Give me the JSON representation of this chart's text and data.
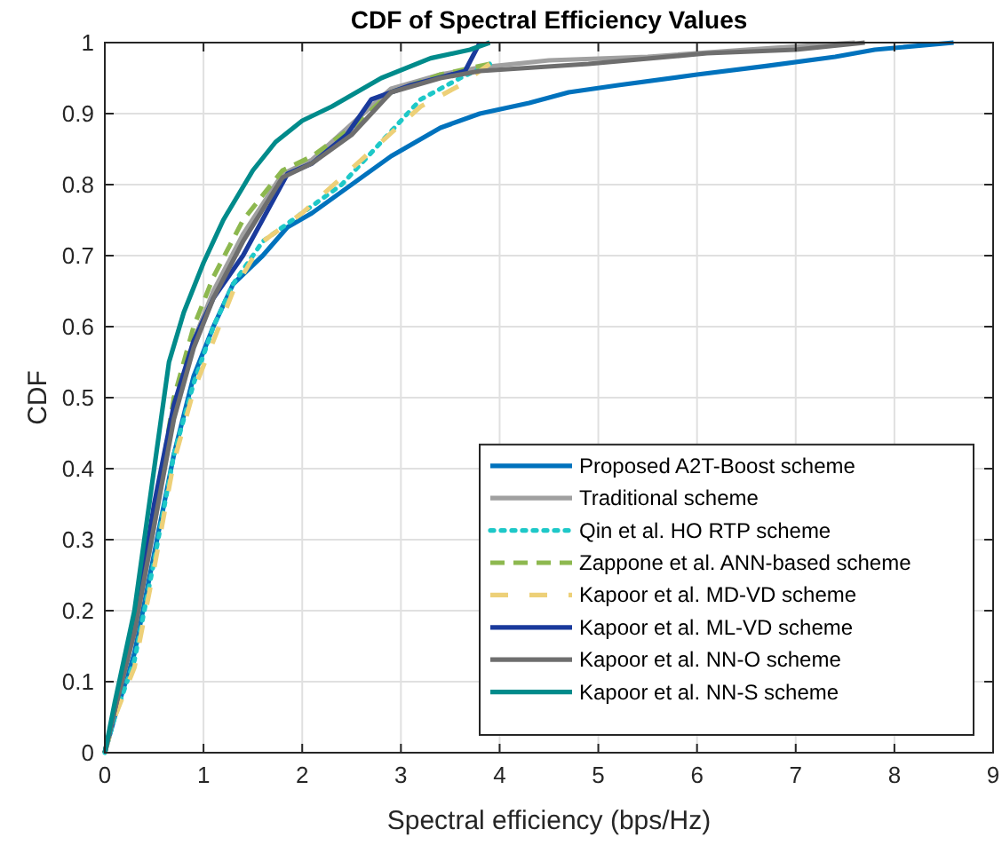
{
  "chart_data": {
    "type": "line",
    "title": "CDF of Spectral Efficiency Values",
    "xlabel": "Spectral efficiency (bps/Hz)",
    "ylabel": "CDF",
    "xlim": [
      0,
      9
    ],
    "ylim": [
      0,
      1
    ],
    "xticks": [
      0,
      1,
      2,
      3,
      4,
      5,
      6,
      7,
      8,
      9
    ],
    "yticks": [
      0,
      0.1,
      0.2,
      0.3,
      0.4,
      0.5,
      0.6,
      0.7,
      0.8,
      0.9,
      1
    ],
    "grid": true,
    "legend": "bottom right",
    "marker": "none",
    "series": [
      {
        "name": "Proposed A2T-Boost scheme",
        "color": "#0072bd",
        "line_style": "solid",
        "x": [
          0,
          0.1,
          0.3,
          0.5,
          0.7,
          0.9,
          1.1,
          1.3,
          1.6,
          1.85,
          2.1,
          2.5,
          2.9,
          3.4,
          3.8,
          4.3,
          4.7,
          5.2,
          6.0,
          6.7,
          7.4,
          7.8,
          8.6
        ],
        "values": [
          0,
          0.05,
          0.14,
          0.28,
          0.42,
          0.53,
          0.6,
          0.66,
          0.7,
          0.74,
          0.76,
          0.8,
          0.84,
          0.88,
          0.9,
          0.915,
          0.93,
          0.94,
          0.955,
          0.967,
          0.98,
          0.99,
          1
        ]
      },
      {
        "name": "Traditional scheme",
        "color": "#a0a0a0",
        "line_style": "solid",
        "x": [
          0,
          0.1,
          0.3,
          0.5,
          0.7,
          0.9,
          1.1,
          1.4,
          1.8,
          2.1,
          2.5,
          2.9,
          3.4,
          3.8,
          4.5,
          5.5,
          6.5,
          7.6
        ],
        "values": [
          0,
          0.06,
          0.17,
          0.32,
          0.48,
          0.58,
          0.65,
          0.73,
          0.815,
          0.835,
          0.885,
          0.935,
          0.955,
          0.965,
          0.975,
          0.98,
          0.99,
          1
        ]
      },
      {
        "name": "Qin et al. HO RTP scheme",
        "color": "#1ec8c8",
        "line_style": "dotted",
        "x": [
          0,
          0.1,
          0.3,
          0.5,
          0.7,
          0.9,
          1.1,
          1.3,
          1.6,
          2.0,
          2.4,
          2.8,
          3.2,
          3.6,
          3.9
        ],
        "values": [
          0,
          0.05,
          0.13,
          0.27,
          0.42,
          0.52,
          0.6,
          0.66,
          0.72,
          0.76,
          0.8,
          0.86,
          0.92,
          0.95,
          0.97
        ]
      },
      {
        "name": "Zappone et al. ANN-based scheme",
        "color": "#8db84f",
        "line_style": "dashed",
        "x": [
          0,
          0.1,
          0.3,
          0.5,
          0.7,
          0.9,
          1.1,
          1.4,
          1.8,
          2.1,
          2.5,
          2.9,
          3.4,
          3.9
        ],
        "values": [
          0,
          0.06,
          0.18,
          0.33,
          0.5,
          0.6,
          0.67,
          0.75,
          0.82,
          0.84,
          0.88,
          0.93,
          0.955,
          0.97
        ]
      },
      {
        "name": "Kapoor et al. MD-VD scheme",
        "color": "#edd078",
        "line_style": "dashed",
        "x": [
          0,
          0.1,
          0.3,
          0.5,
          0.7,
          0.9,
          1.1,
          1.3,
          1.6,
          2.0,
          2.4,
          2.8,
          3.2,
          3.6,
          3.9
        ],
        "values": [
          0,
          0.05,
          0.12,
          0.26,
          0.41,
          0.51,
          0.58,
          0.65,
          0.72,
          0.76,
          0.81,
          0.86,
          0.91,
          0.94,
          0.97
        ]
      },
      {
        "name": "Kapoor et al. ML-VD scheme",
        "color": "#1a3a9c",
        "line_style": "solid",
        "x": [
          0,
          0.1,
          0.3,
          0.5,
          0.7,
          0.9,
          1.1,
          1.4,
          1.85,
          2.1,
          2.45,
          2.7,
          3.1,
          3.65,
          3.8
        ],
        "values": [
          0,
          0.06,
          0.18,
          0.35,
          0.49,
          0.58,
          0.64,
          0.7,
          0.815,
          0.83,
          0.87,
          0.92,
          0.94,
          0.96,
          1
        ]
      },
      {
        "name": "Kapoor et al. NN-O scheme",
        "color": "#6e6e6e",
        "line_style": "solid",
        "x": [
          0,
          0.1,
          0.3,
          0.5,
          0.7,
          0.9,
          1.1,
          1.4,
          1.8,
          2.1,
          2.5,
          2.9,
          3.4,
          3.8,
          4.9,
          6.1,
          7.0,
          7.7
        ],
        "values": [
          0,
          0.06,
          0.17,
          0.32,
          0.47,
          0.57,
          0.64,
          0.72,
          0.81,
          0.83,
          0.87,
          0.93,
          0.95,
          0.96,
          0.97,
          0.985,
          0.99,
          1
        ]
      },
      {
        "name": "Kapoor et al. NN-S scheme",
        "color": "#008b8b",
        "line_style": "solid",
        "x": [
          0,
          0.1,
          0.3,
          0.5,
          0.65,
          0.8,
          1.0,
          1.2,
          1.5,
          1.73,
          2.0,
          2.3,
          2.8,
          3.3,
          3.7,
          3.9
        ],
        "values": [
          0,
          0.07,
          0.2,
          0.4,
          0.55,
          0.62,
          0.69,
          0.75,
          0.82,
          0.86,
          0.89,
          0.91,
          0.95,
          0.978,
          0.99,
          1
        ]
      }
    ]
  }
}
